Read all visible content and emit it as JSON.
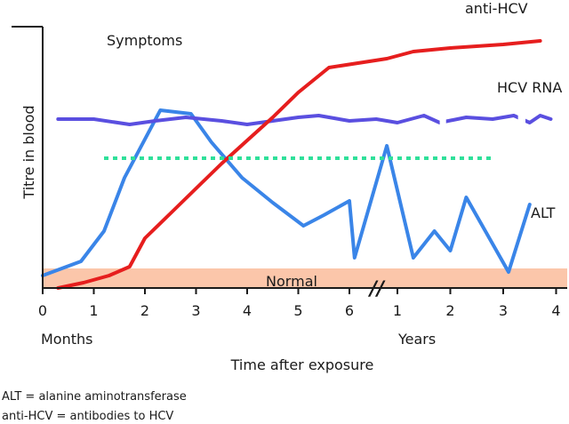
{
  "chart_data": {
    "type": "line",
    "ylabel": "Titre in blood",
    "xlabel": "Time after exposure",
    "segments": [
      {
        "label": "Months",
        "ticks": [
          "0",
          "1",
          "2",
          "3",
          "4",
          "5",
          "6"
        ],
        "xlim": [
          0,
          6.5
        ]
      },
      {
        "label": "Years",
        "ticks": [
          "1",
          "2",
          "3",
          "4"
        ],
        "xlim": [
          0.5,
          4.1
        ]
      }
    ],
    "axis_break": "//",
    "normal_band": {
      "label": "Normal",
      "range": [
        0,
        0.11
      ],
      "color": "#fbc6aa"
    },
    "symptoms": {
      "label": "Symptoms",
      "x_start": 1.2,
      "x_end": 2.8,
      "segment_end": 1,
      "level": 0.88,
      "color": "#2fe09a"
    },
    "series": [
      {
        "name": "anti-HCV",
        "color": "#e61e1e",
        "points": [
          {
            "s": 0,
            "x": 0.3,
            "y": 0.0
          },
          {
            "s": 0,
            "x": 0.8,
            "y": 0.03
          },
          {
            "s": 0,
            "x": 1.3,
            "y": 0.07
          },
          {
            "s": 0,
            "x": 1.7,
            "y": 0.12
          },
          {
            "s": 0,
            "x": 2.0,
            "y": 0.28
          },
          {
            "s": 0,
            "x": 2.5,
            "y": 0.42
          },
          {
            "s": 0,
            "x": 3.0,
            "y": 0.56
          },
          {
            "s": 0,
            "x": 3.5,
            "y": 0.7
          },
          {
            "s": 0,
            "x": 4.0,
            "y": 0.83
          },
          {
            "s": 0,
            "x": 4.5,
            "y": 0.96
          },
          {
            "s": 0,
            "x": 5.0,
            "y": 1.1
          },
          {
            "s": 0,
            "x": 5.6,
            "y": 1.24
          },
          {
            "s": 1,
            "x": 0.8,
            "y": 1.29
          },
          {
            "s": 1,
            "x": 1.3,
            "y": 1.33
          },
          {
            "s": 1,
            "x": 2.0,
            "y": 1.35
          },
          {
            "s": 1,
            "x": 3.0,
            "y": 1.37
          },
          {
            "s": 1,
            "x": 3.7,
            "y": 1.39
          }
        ]
      },
      {
        "name": "HCV RNA",
        "color": "#5a4fe0",
        "points": [
          {
            "s": 0,
            "x": 0.3,
            "y": 0.95
          },
          {
            "s": 0,
            "x": 1.0,
            "y": 0.95
          },
          {
            "s": 0,
            "x": 1.7,
            "y": 0.92
          },
          {
            "s": 0,
            "x": 2.2,
            "y": 0.94
          },
          {
            "s": 0,
            "x": 2.8,
            "y": 0.96
          },
          {
            "s": 0,
            "x": 3.5,
            "y": 0.94
          },
          {
            "s": 0,
            "x": 4.0,
            "y": 0.92
          },
          {
            "s": 0,
            "x": 4.5,
            "y": 0.94
          },
          {
            "s": 0,
            "x": 5.0,
            "y": 0.96
          },
          {
            "s": 0,
            "x": 5.4,
            "y": 0.97
          },
          {
            "s": 0,
            "x": 6.0,
            "y": 0.94
          },
          {
            "s": 1,
            "x": 0.6,
            "y": 0.95
          },
          {
            "s": 1,
            "x": 1.0,
            "y": 0.93
          },
          {
            "s": 1,
            "x": 1.5,
            "y": 0.97
          },
          {
            "s": 1,
            "x": 1.8,
            "y": 0.93
          },
          {
            "s": 1,
            "x": 2.3,
            "y": 0.96
          },
          {
            "s": 1,
            "x": 2.8,
            "y": 0.95
          },
          {
            "s": 1,
            "x": 3.2,
            "y": 0.97
          },
          {
            "s": 1,
            "x": 3.5,
            "y": 0.93
          },
          {
            "s": 1,
            "x": 3.7,
            "y": 0.97
          },
          {
            "s": 1,
            "x": 3.9,
            "y": 0.95
          }
        ]
      },
      {
        "name": "ALT",
        "color": "#3a85e8",
        "points": [
          {
            "s": 0,
            "x": 0.0,
            "y": 0.07
          },
          {
            "s": 0,
            "x": 0.75,
            "y": 0.15
          },
          {
            "s": 0,
            "x": 1.2,
            "y": 0.32
          },
          {
            "s": 0,
            "x": 1.6,
            "y": 0.62
          },
          {
            "s": 0,
            "x": 2.3,
            "y": 1.0
          },
          {
            "s": 0,
            "x": 2.9,
            "y": 0.98
          },
          {
            "s": 0,
            "x": 3.3,
            "y": 0.82
          },
          {
            "s": 0,
            "x": 3.9,
            "y": 0.62
          },
          {
            "s": 0,
            "x": 4.5,
            "y": 0.48
          },
          {
            "s": 0,
            "x": 5.1,
            "y": 0.35
          },
          {
            "s": 0,
            "x": 5.5,
            "y": 0.41
          },
          {
            "s": 0,
            "x": 6.0,
            "y": 0.49
          },
          {
            "s": 0,
            "x": 6.1,
            "y": 0.17
          },
          {
            "s": 1,
            "x": 0.8,
            "y": 0.8
          },
          {
            "s": 1,
            "x": 1.3,
            "y": 0.17
          },
          {
            "s": 1,
            "x": 1.7,
            "y": 0.32
          },
          {
            "s": 1,
            "x": 2.0,
            "y": 0.21
          },
          {
            "s": 1,
            "x": 2.3,
            "y": 0.51
          },
          {
            "s": 1,
            "x": 3.1,
            "y": 0.09
          },
          {
            "s": 1,
            "x": 3.5,
            "y": 0.47
          }
        ]
      }
    ],
    "gaps": [
      {
        "series": "HCV RNA",
        "s": 1,
        "x_from": 1.8,
        "x_to": 1.92,
        "color": "#ffffff"
      },
      {
        "series": "HCV RNA",
        "s": 1,
        "x_from": 3.28,
        "x_to": 3.42,
        "color": "#ffffff"
      }
    ]
  },
  "footnotes": [
    "ALT = alanine aminotransferase",
    "anti-HCV = antibodies to HCV"
  ]
}
